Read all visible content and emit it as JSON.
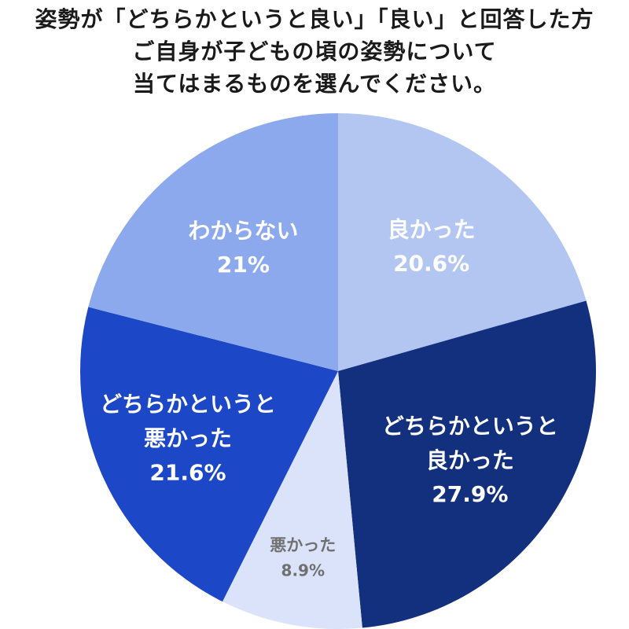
{
  "title_lines": [
    "姿勢が「どちらかというと良い」「良い」と回答した方",
    "ご自身が子どもの頃の姿勢について",
    "当てはまるものを選んでください。"
  ],
  "chart_data": {
    "type": "pie",
    "start": "12 o'clock",
    "direction": "clockwise",
    "slices": [
      {
        "label_lines": [
          "良かった"
        ],
        "value": 20.6,
        "value_label": "20.6%",
        "color": "#b3c6f2",
        "text_color": "#ffffff"
      },
      {
        "label_lines": [
          "どちらかというと",
          "良かった"
        ],
        "value": 27.9,
        "value_label": "27.9%",
        "color": "#13307f",
        "text_color": "#ffffff"
      },
      {
        "label_lines": [
          "悪かった"
        ],
        "value": 8.9,
        "value_label": "8.9%",
        "color": "#dbe3fa",
        "text_color": "#707070"
      },
      {
        "label_lines": [
          "どちらかというと",
          "悪かった"
        ],
        "value": 21.6,
        "value_label": "21.6%",
        "color": "#1c47c7",
        "text_color": "#ffffff"
      },
      {
        "label_lines": [
          "わからない"
        ],
        "value": 21,
        "value_label": "21%",
        "color": "#8da9ee",
        "text_color": "#ffffff"
      }
    ]
  }
}
